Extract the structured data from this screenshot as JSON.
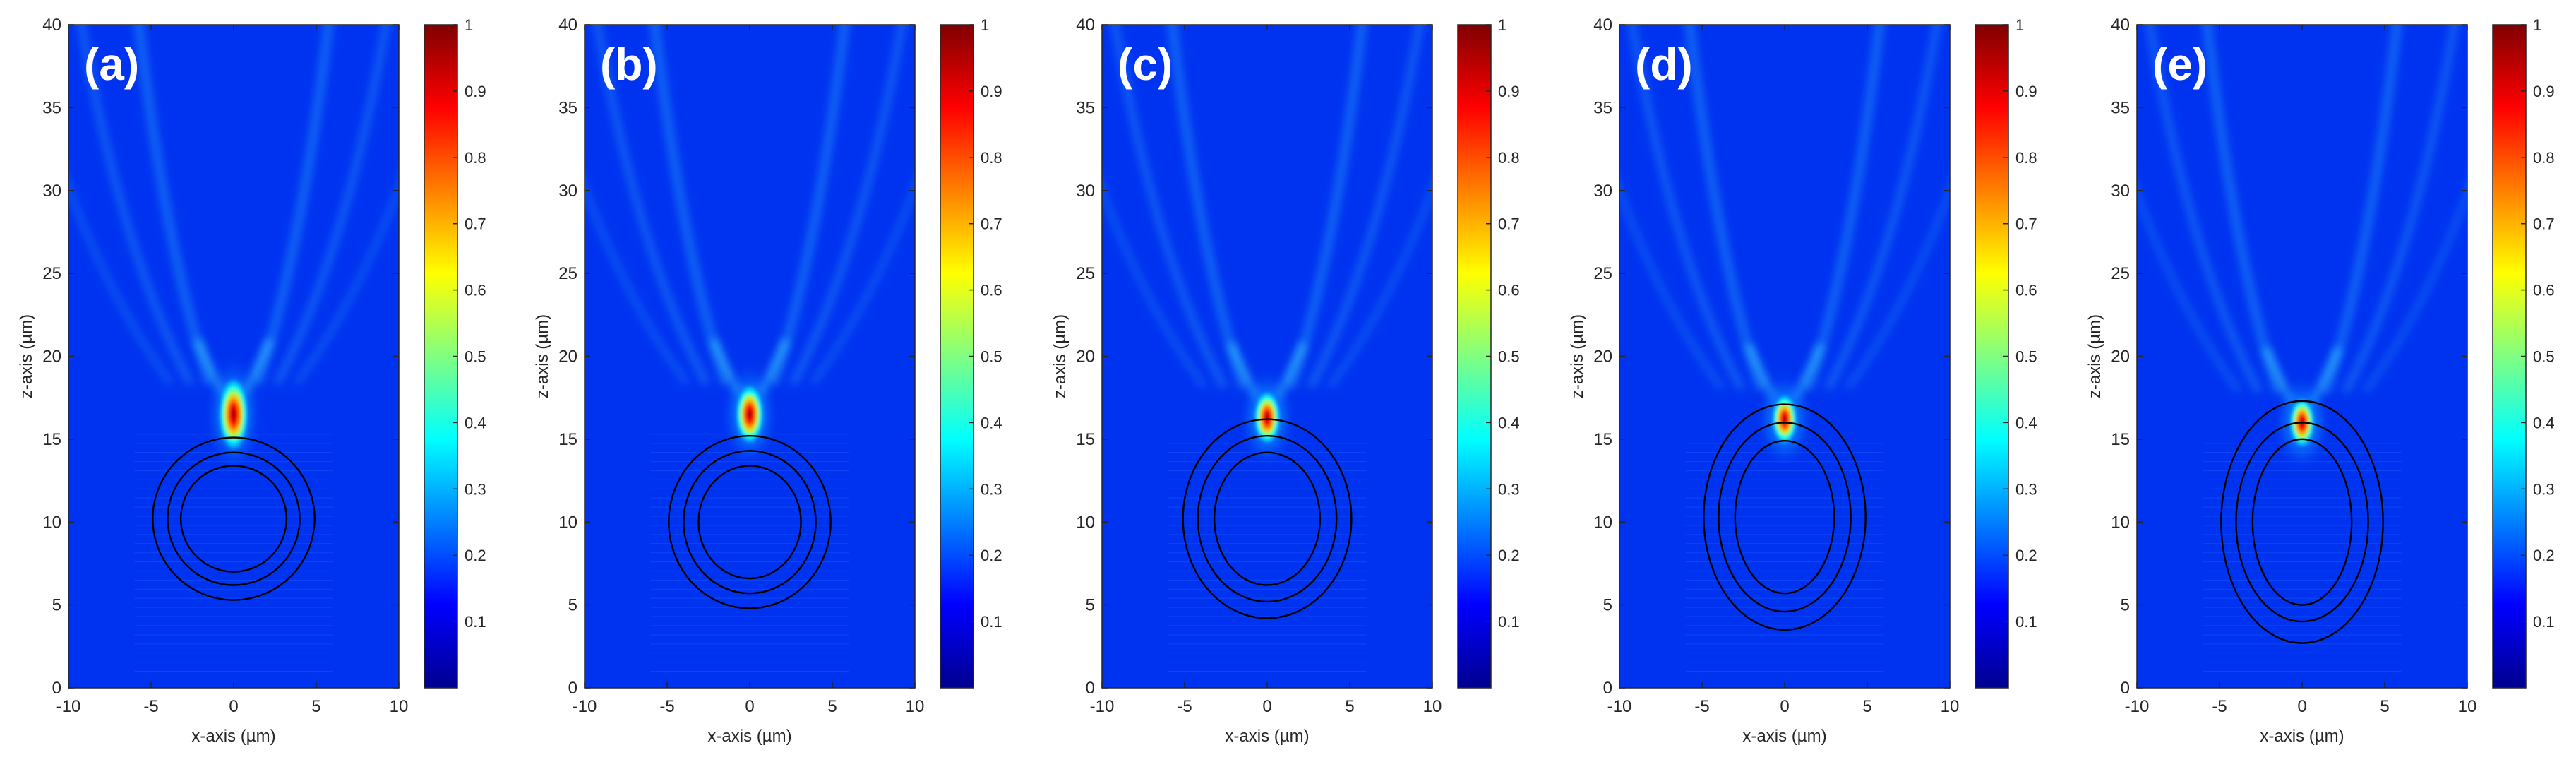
{
  "chart_data": [
    {
      "panel_label": "(a)",
      "type": "heatmap",
      "xlabel": "x-axis (µm)",
      "ylabel": "z-axis (µm)",
      "xlim": [
        -10,
        10
      ],
      "ylim": [
        0,
        40
      ],
      "xticks": [
        "-10",
        "-5",
        "0",
        "5",
        "10"
      ],
      "yticks": [
        "0",
        "5",
        "10",
        "15",
        "20",
        "25",
        "30",
        "35",
        "40"
      ],
      "colorbar_range": [
        0,
        1
      ],
      "colorbar_ticks": [
        "0.1",
        "0.2",
        "0.3",
        "0.4",
        "0.5",
        "0.6",
        "0.7",
        "0.8",
        "0.9",
        "1"
      ],
      "focus": {
        "x": 0,
        "z": 16.5,
        "half_width": 0.45,
        "half_length": 1.5
      },
      "particle": {
        "center_x": 0,
        "center_z": 10.2,
        "ellipses": [
          [
            3.2,
            3.2
          ],
          [
            4.0,
            4.0
          ],
          [
            4.9,
            4.9
          ]
        ]
      }
    },
    {
      "panel_label": "(b)",
      "type": "heatmap",
      "xlabel": "x-axis (µm)",
      "ylabel": "z-axis (µm)",
      "xlim": [
        -10,
        10
      ],
      "ylim": [
        0,
        40
      ],
      "xticks": [
        "-10",
        "-5",
        "0",
        "5",
        "10"
      ],
      "yticks": [
        "0",
        "5",
        "10",
        "15",
        "20",
        "25",
        "30",
        "35",
        "40"
      ],
      "colorbar_range": [
        0,
        1
      ],
      "colorbar_ticks": [
        "0.1",
        "0.2",
        "0.3",
        "0.4",
        "0.5",
        "0.6",
        "0.7",
        "0.8",
        "0.9",
        "1"
      ],
      "focus": {
        "x": 0,
        "z": 16.5,
        "half_width": 0.4,
        "half_length": 1.1
      },
      "particle": {
        "center_x": 0,
        "center_z": 10.0,
        "ellipses": [
          [
            3.1,
            3.4
          ],
          [
            4.0,
            4.3
          ],
          [
            4.9,
            5.2
          ]
        ]
      }
    },
    {
      "panel_label": "(c)",
      "type": "heatmap",
      "xlabel": "x-axis (µm)",
      "ylabel": "z-axis (µm)",
      "xlim": [
        -10,
        10
      ],
      "ylim": [
        0,
        40
      ],
      "xticks": [
        "-10",
        "-5",
        "0",
        "5",
        "10"
      ],
      "yticks": [
        "0",
        "5",
        "10",
        "15",
        "20",
        "25",
        "30",
        "35",
        "40"
      ],
      "colorbar_range": [
        0,
        1
      ],
      "colorbar_ticks": [
        "0.1",
        "0.2",
        "0.3",
        "0.4",
        "0.5",
        "0.6",
        "0.7",
        "0.8",
        "0.9",
        "1"
      ],
      "focus": {
        "x": 0,
        "z": 16.3,
        "half_width": 0.35,
        "half_length": 0.9
      },
      "particle": {
        "center_x": 0,
        "center_z": 10.2,
        "ellipses": [
          [
            3.2,
            4.0
          ],
          [
            4.2,
            5.0
          ],
          [
            5.1,
            6.0
          ]
        ]
      }
    },
    {
      "panel_label": "(d)",
      "type": "heatmap",
      "xlabel": "x-axis (µm)",
      "ylabel": "z-axis (µm)",
      "xlim": [
        -10,
        10
      ],
      "ylim": [
        0,
        40
      ],
      "xticks": [
        "-10",
        "-5",
        "0",
        "5",
        "10"
      ],
      "yticks": [
        "0",
        "5",
        "10",
        "15",
        "20",
        "25",
        "30",
        "35",
        "40"
      ],
      "colorbar_range": [
        0,
        1
      ],
      "colorbar_ticks": [
        "0.1",
        "0.2",
        "0.3",
        "0.4",
        "0.5",
        "0.6",
        "0.7",
        "0.8",
        "0.9",
        "1"
      ],
      "focus": {
        "x": 0,
        "z": 16.2,
        "half_width": 0.3,
        "half_length": 0.8
      },
      "particle": {
        "center_x": 0,
        "center_z": 10.3,
        "ellipses": [
          [
            3.0,
            4.6
          ],
          [
            4.0,
            5.7
          ],
          [
            4.9,
            6.8
          ]
        ]
      }
    },
    {
      "panel_label": "(e)",
      "type": "heatmap",
      "xlabel": "x-axis (µm)",
      "ylabel": "z-axis (µm)",
      "xlim": [
        -10,
        10
      ],
      "ylim": [
        0,
        40
      ],
      "xticks": [
        "-10",
        "-5",
        "0",
        "5",
        "10"
      ],
      "yticks": [
        "0",
        "5",
        "10",
        "15",
        "20",
        "25",
        "30",
        "35",
        "40"
      ],
      "colorbar_range": [
        0,
        1
      ],
      "colorbar_ticks": [
        "0.1",
        "0.2",
        "0.3",
        "0.4",
        "0.5",
        "0.6",
        "0.7",
        "0.8",
        "0.9",
        "1"
      ],
      "focus": {
        "x": 0,
        "z": 16.0,
        "half_width": 0.3,
        "half_length": 0.8
      },
      "particle": {
        "center_x": 0,
        "center_z": 10.0,
        "ellipses": [
          [
            3.0,
            5.0
          ],
          [
            4.0,
            6.0
          ],
          [
            4.9,
            7.3
          ]
        ]
      }
    }
  ],
  "colors": {
    "field_bg": "#0033f0",
    "colorbar": [
      "#00008f",
      "#0000ff",
      "#0080ff",
      "#00ffff",
      "#80ff80",
      "#ffff00",
      "#ff8000",
      "#ff0000",
      "#800000"
    ]
  }
}
